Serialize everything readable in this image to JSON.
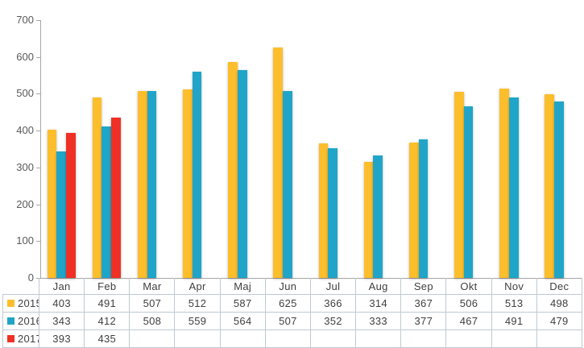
{
  "chart_data": {
    "type": "bar",
    "title": "",
    "xlabel": "",
    "ylabel": "",
    "categories": [
      "Jan",
      "Feb",
      "Mar",
      "Apr",
      "Maj",
      "Jun",
      "Jul",
      "Aug",
      "Sep",
      "Okt",
      "Nov",
      "Dec"
    ],
    "series": [
      {
        "name": "2015",
        "color": "#FDBE2C",
        "values": [
          403,
          491,
          507,
          512,
          587,
          625,
          366,
          314,
          367,
          506,
          513,
          498
        ]
      },
      {
        "name": "2016",
        "color": "#20A5C9",
        "values": [
          343,
          412,
          508,
          559,
          564,
          507,
          352,
          333,
          377,
          467,
          491,
          479
        ]
      },
      {
        "name": "2017",
        "color": "#EE3124",
        "values": [
          393,
          435,
          null,
          null,
          null,
          null,
          null,
          null,
          null,
          null,
          null,
          null
        ]
      }
    ],
    "ylim": [
      0,
      700
    ],
    "yticks": [
      0,
      100,
      200,
      300,
      400,
      500,
      600,
      700
    ],
    "grid": false,
    "legend_position": "data-table-left",
    "data_table_shown": true
  },
  "style": {
    "axis_color": "#A6A6A6",
    "table_border_color": "#BFCAD2",
    "table_text_color": "#404040",
    "axis_text_color": "#595959",
    "background": "#FFFFFF"
  }
}
